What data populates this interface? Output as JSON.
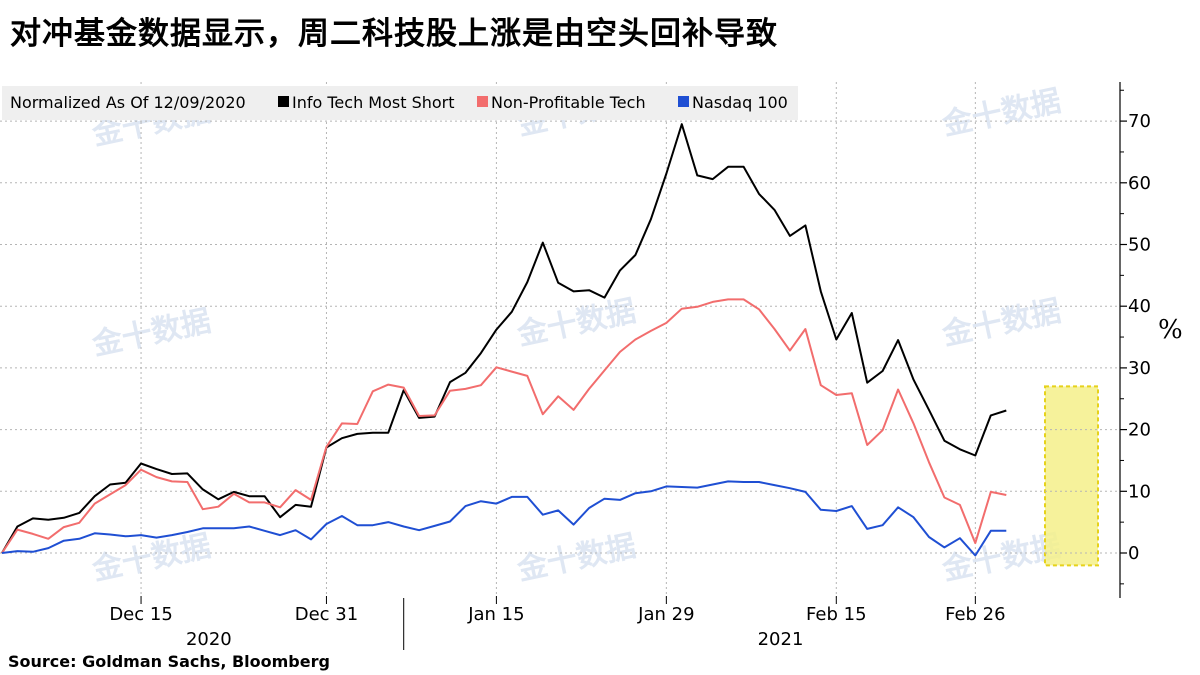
{
  "title": "对冲基金数据显示，周二科技股上涨是由空头回补导致",
  "source": "Source: Goldman Sachs, Bloomberg",
  "watermark": "金十数据",
  "chart_data": {
    "type": "line",
    "legend": {
      "title": "Normalized As Of 12/09/2020",
      "placement": "top-left"
    },
    "ylabel": "%",
    "y_axis_side": "right",
    "ylim": [
      -7,
      75
    ],
    "yticks": [
      0,
      10,
      20,
      30,
      40,
      50,
      60,
      70
    ],
    "xticks": [
      {
        "index": 9,
        "label": "Dec 15"
      },
      {
        "index": 21,
        "label": "Dec 31"
      },
      {
        "index": 32,
        "label": "Jan 15"
      },
      {
        "index": 43,
        "label": "Jan 29"
      },
      {
        "index": 54,
        "label": "Feb 15"
      },
      {
        "index": 63,
        "label": "Feb 26"
      }
    ],
    "year_labels": [
      {
        "index": 13,
        "label": "2020"
      },
      {
        "index": 50,
        "label": "2021"
      }
    ],
    "grid": true,
    "highlight": {
      "from_index": 68,
      "to_index": 71,
      "ymin": -2,
      "ymax": 27,
      "color": "#f5f08a"
    },
    "x": [
      0,
      1,
      2,
      3,
      4,
      5,
      6,
      7,
      8,
      9,
      10,
      11,
      12,
      13,
      14,
      15,
      16,
      17,
      18,
      19,
      20,
      21,
      22,
      23,
      24,
      25,
      26,
      27,
      28,
      29,
      30,
      31,
      32,
      33,
      34,
      35,
      36,
      37,
      38,
      39,
      40,
      41,
      42,
      43,
      44,
      45,
      46,
      47,
      48,
      49,
      50,
      51,
      52,
      53,
      54,
      55,
      56,
      57,
      58,
      59,
      60,
      61,
      62,
      63,
      64,
      65,
      66,
      67,
      68,
      69,
      70,
      71
    ],
    "series": [
      {
        "name": "Info Tech Most Short",
        "color": "#000000",
        "values": [
          0,
          4.3,
          5.6,
          5.4,
          5.7,
          6.5,
          9.2,
          11.1,
          11.4,
          14.5,
          13.6,
          12.8,
          12.9,
          10.3,
          8.7,
          9.9,
          9.2,
          9.2,
          5.8,
          7.8,
          7.5,
          17.1,
          18.6,
          19.3,
          19.5,
          19.5,
          26.4,
          21.9,
          22.1,
          27.7,
          29.2,
          32.4,
          36.2,
          39.1,
          43.9,
          50.3,
          43.8,
          42.4,
          42.6,
          41.4,
          45.8,
          48.3,
          54.1,
          61.5,
          69.5,
          61.2,
          60.6,
          62.6,
          62.6,
          58.2,
          55.6,
          51.4,
          53.1,
          42.4,
          34.6,
          38.9,
          27.6,
          29.5,
          34.5,
          28.1,
          23.2,
          18.2,
          16.8,
          15.8,
          22.3,
          23.1,
          null,
          null,
          null,
          null,
          null,
          null
        ]
      },
      {
        "name": "Non-Profitable Tech",
        "color": "#f26d6d",
        "values": [
          0,
          3.8,
          3.1,
          2.3,
          4.2,
          4.9,
          8.0,
          9.5,
          11.0,
          13.5,
          12.3,
          11.6,
          11.5,
          7.1,
          7.5,
          9.6,
          8.2,
          8.2,
          7.4,
          10.2,
          8.6,
          17.2,
          21.0,
          20.9,
          26.2,
          27.3,
          26.8,
          22.2,
          22.3,
          26.3,
          26.6,
          27.2,
          30.1,
          29.4,
          28.7,
          22.5,
          25.4,
          23.2,
          26.6,
          29.6,
          32.6,
          34.6,
          36.0,
          37.3,
          39.6,
          39.9,
          40.7,
          41.1,
          41.1,
          39.5,
          36.3,
          32.8,
          36.3,
          27.2,
          25.6,
          25.9,
          17.5,
          19.9,
          26.5,
          21.0,
          14.7,
          9.0,
          7.8,
          1.6,
          9.9,
          9.4,
          null,
          null,
          null,
          null,
          null,
          null
        ]
      },
      {
        "name": "Nasdaq 100",
        "color": "#1f4fd3",
        "values": [
          0,
          0.3,
          0.2,
          0.8,
          2.0,
          2.3,
          3.2,
          3.0,
          2.7,
          2.9,
          2.5,
          2.9,
          3.4,
          4.0,
          4.0,
          4.0,
          4.3,
          3.6,
          2.9,
          3.7,
          2.2,
          4.7,
          6.0,
          4.5,
          4.5,
          5.0,
          4.3,
          3.7,
          4.4,
          5.1,
          7.6,
          8.4,
          8.0,
          9.1,
          9.1,
          6.2,
          6.9,
          4.6,
          7.3,
          8.8,
          8.6,
          9.7,
          10.0,
          10.8,
          10.7,
          10.6,
          11.1,
          11.6,
          11.5,
          11.5,
          11.0,
          10.5,
          9.9,
          7.0,
          6.8,
          7.6,
          3.9,
          4.5,
          7.4,
          5.8,
          2.6,
          0.9,
          2.4,
          -0.4,
          3.6,
          3.6,
          null,
          null,
          null,
          null,
          null,
          null
        ]
      }
    ]
  }
}
